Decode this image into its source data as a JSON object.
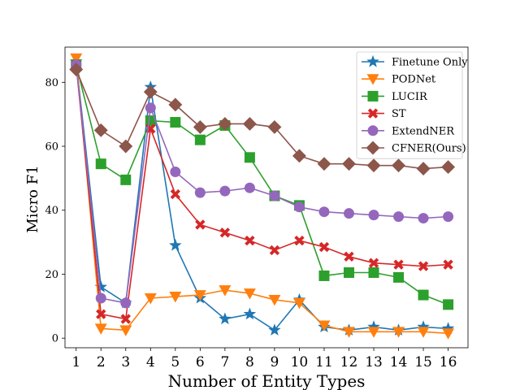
{
  "chart_data": {
    "type": "line",
    "title": "",
    "xlabel": "Number of Entity Types",
    "ylabel": "Micro F1",
    "categories": [
      1,
      2,
      3,
      4,
      5,
      6,
      7,
      8,
      9,
      10,
      11,
      12,
      13,
      14,
      15,
      16
    ],
    "x_ticks": [
      "1",
      "2",
      "3",
      "4",
      "5",
      "6",
      "7",
      "8",
      "9",
      "10",
      "11",
      "12",
      "13",
      "14",
      "15",
      "16"
    ],
    "y_ticks": [
      0,
      20,
      40,
      60,
      80
    ],
    "xlim": [
      0.55,
      16.8
    ],
    "ylim": [
      -3,
      91
    ],
    "grid": false,
    "legend_position": "top-right",
    "series": [
      {
        "name": "Finetune Only",
        "color": "#1f77b4",
        "marker": "star",
        "values": [
          86.5,
          16.0,
          11.0,
          78.5,
          29.0,
          12.5,
          6.0,
          7.5,
          2.5,
          12.0,
          3.5,
          2.5,
          3.5,
          2.5,
          3.5,
          3.0
        ]
      },
      {
        "name": "PODNet",
        "color": "#ff7f0e",
        "marker": "triangle-down",
        "values": [
          87.5,
          3.0,
          2.5,
          12.5,
          13.0,
          13.5,
          15.0,
          14.0,
          12.0,
          11.0,
          4.0,
          2.0,
          2.0,
          2.0,
          2.0,
          1.5
        ]
      },
      {
        "name": "LUCIR",
        "color": "#2ca02c",
        "marker": "square",
        "values": [
          85.5,
          54.5,
          49.5,
          68.0,
          67.5,
          62.0,
          66.5,
          56.5,
          44.5,
          41.5,
          19.5,
          20.5,
          20.5,
          19.0,
          13.5,
          10.5
        ]
      },
      {
        "name": "ST",
        "color": "#d62728",
        "marker": "x-thick",
        "values": [
          85.5,
          7.5,
          6.0,
          65.5,
          45.0,
          35.5,
          33.0,
          30.5,
          27.5,
          30.5,
          28.5,
          25.5,
          23.5,
          23.0,
          22.5,
          23.0
        ]
      },
      {
        "name": "ExtendNER",
        "color": "#9467bd",
        "marker": "circle",
        "values": [
          85.5,
          12.5,
          11.0,
          72.0,
          52.0,
          45.5,
          46.0,
          47.0,
          44.5,
          41.0,
          39.5,
          39.0,
          38.5,
          38.0,
          37.5,
          38.0
        ]
      },
      {
        "name": "CFNER(Ours)",
        "color": "#8c564b",
        "marker": "diamond",
        "values": [
          84.0,
          65.0,
          60.0,
          77.0,
          73.0,
          66.0,
          67.0,
          67.0,
          66.0,
          57.0,
          54.5,
          54.5,
          54.0,
          54.0,
          53.0,
          53.5
        ]
      }
    ]
  }
}
